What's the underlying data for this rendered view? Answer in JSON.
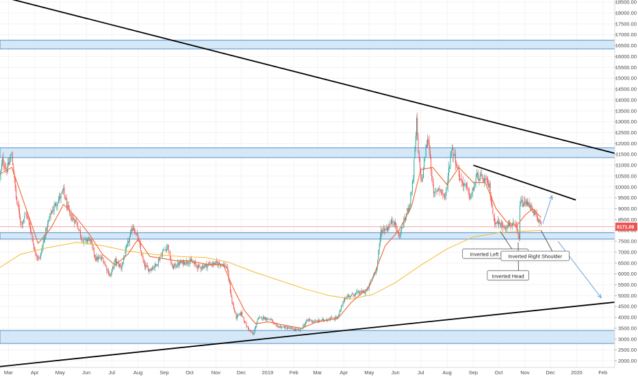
{
  "chart_data": {
    "type": "candlestick",
    "ylim": [
      1700,
      18600
    ],
    "y_ticks": [
      2000,
      2500,
      3000,
      3500,
      4000,
      4500,
      5000,
      5500,
      6000,
      6500,
      7000,
      7500,
      8000,
      8500,
      9000,
      9500,
      10000,
      10500,
      11000,
      11500,
      12000,
      12500,
      13000,
      13500,
      14000,
      14500,
      15000,
      15500,
      16000,
      16500,
      17000,
      17500,
      18000,
      18500
    ],
    "y_tick_labels": [
      "2000.00",
      "2500.00",
      "3000.00",
      "3500.00",
      "4000.00",
      "4500.00",
      "5000.00",
      "5500.00",
      "6000.00",
      "6500.00",
      "7000.00",
      "7500.00",
      "8000.00",
      "8500.00",
      "9000.00",
      "9500.00",
      "10000.00",
      "10500.00",
      "11000.00",
      "11500.00",
      "12000.00",
      "12500.00",
      "13000.00",
      "13500.00",
      "14000.00",
      "14500.00",
      "15000.00",
      "15500.00",
      "16000.00",
      "16500.00",
      "17000.00",
      "17500.00",
      "18000.00",
      "18500.00"
    ],
    "x_start": "2018-02-19",
    "x_end": "2020-02-15",
    "x_ticks": [
      {
        "date": "2018-03-01",
        "label": "Mar"
      },
      {
        "date": "2018-04-01",
        "label": "Apr"
      },
      {
        "date": "2018-05-01",
        "label": "May"
      },
      {
        "date": "2018-06-01",
        "label": "Jun"
      },
      {
        "date": "2018-07-01",
        "label": "Jul"
      },
      {
        "date": "2018-08-01",
        "label": "Aug"
      },
      {
        "date": "2018-09-01",
        "label": "Sep"
      },
      {
        "date": "2018-10-01",
        "label": "Oct"
      },
      {
        "date": "2018-11-01",
        "label": "Nov"
      },
      {
        "date": "2018-12-01",
        "label": "Dec"
      },
      {
        "date": "2019-01-01",
        "label": "2019"
      },
      {
        "date": "2019-02-01",
        "label": "Feb"
      },
      {
        "date": "2019-03-01",
        "label": "Mar"
      },
      {
        "date": "2019-04-01",
        "label": "Apr"
      },
      {
        "date": "2019-05-01",
        "label": "May"
      },
      {
        "date": "2019-06-01",
        "label": "Jun"
      },
      {
        "date": "2019-07-01",
        "label": "Jul"
      },
      {
        "date": "2019-08-01",
        "label": "Aug"
      },
      {
        "date": "2019-09-01",
        "label": "Sep"
      },
      {
        "date": "2019-10-01",
        "label": "Oct"
      },
      {
        "date": "2019-11-01",
        "label": "Nov"
      },
      {
        "date": "2019-12-01",
        "label": "Dec"
      },
      {
        "date": "2020-01-01",
        "label": "2020"
      },
      {
        "date": "2020-02-01",
        "label": "Feb"
      }
    ],
    "price_path": [
      [
        "2018-02-19",
        10500
      ],
      [
        "2018-02-22",
        11200
      ],
      [
        "2018-02-27",
        10800
      ],
      [
        "2018-03-05",
        11500
      ],
      [
        "2018-03-10",
        9500
      ],
      [
        "2018-03-16",
        8300
      ],
      [
        "2018-03-22",
        8800
      ],
      [
        "2018-03-28",
        7900
      ],
      [
        "2018-04-01",
        7000
      ],
      [
        "2018-04-07",
        6700
      ],
      [
        "2018-04-13",
        7800
      ],
      [
        "2018-04-20",
        8800
      ],
      [
        "2018-04-27",
        9300
      ],
      [
        "2018-05-05",
        9800
      ],
      [
        "2018-05-12",
        8700
      ],
      [
        "2018-05-20",
        8400
      ],
      [
        "2018-05-28",
        7500
      ],
      [
        "2018-06-05",
        7600
      ],
      [
        "2018-06-12",
        6700
      ],
      [
        "2018-06-20",
        6700
      ],
      [
        "2018-06-29",
        5900
      ],
      [
        "2018-07-05",
        6600
      ],
      [
        "2018-07-12",
        6300
      ],
      [
        "2018-07-20",
        7400
      ],
      [
        "2018-07-26",
        8200
      ],
      [
        "2018-08-01",
        7600
      ],
      [
        "2018-08-08",
        6400
      ],
      [
        "2018-08-14",
        6200
      ],
      [
        "2018-08-22",
        6400
      ],
      [
        "2018-08-30",
        7000
      ],
      [
        "2018-09-05",
        7300
      ],
      [
        "2018-09-10",
        6300
      ],
      [
        "2018-09-20",
        6500
      ],
      [
        "2018-10-01",
        6600
      ],
      [
        "2018-10-12",
        6300
      ],
      [
        "2018-10-25",
        6450
      ],
      [
        "2018-11-07",
        6500
      ],
      [
        "2018-11-14",
        6300
      ],
      [
        "2018-11-20",
        4700
      ],
      [
        "2018-11-25",
        4000
      ],
      [
        "2018-12-01",
        4200
      ],
      [
        "2018-12-07",
        3600
      ],
      [
        "2018-12-15",
        3200
      ],
      [
        "2018-12-20",
        3900
      ],
      [
        "2018-12-25",
        4000
      ],
      [
        "2019-01-05",
        3900
      ],
      [
        "2019-01-10",
        3600
      ],
      [
        "2019-01-20",
        3550
      ],
      [
        "2019-02-01",
        3450
      ],
      [
        "2019-02-08",
        3400
      ],
      [
        "2019-02-18",
        3900
      ],
      [
        "2019-02-26",
        3800
      ],
      [
        "2019-03-10",
        3900
      ],
      [
        "2019-03-25",
        4000
      ],
      [
        "2019-04-02",
        4900
      ],
      [
        "2019-04-15",
        5100
      ],
      [
        "2019-04-28",
        5200
      ],
      [
        "2019-05-10",
        6300
      ],
      [
        "2019-05-15",
        8000
      ],
      [
        "2019-05-22",
        8100
      ],
      [
        "2019-05-30",
        8500
      ],
      [
        "2019-06-05",
        7700
      ],
      [
        "2019-06-12",
        8500
      ],
      [
        "2019-06-18",
        9300
      ],
      [
        "2019-06-22",
        10500
      ],
      [
        "2019-06-26",
        13000
      ],
      [
        "2019-06-28",
        11500
      ],
      [
        "2019-07-02",
        10200
      ],
      [
        "2019-07-07",
        11800
      ],
      [
        "2019-07-10",
        12200
      ],
      [
        "2019-07-16",
        9600
      ],
      [
        "2019-07-22",
        10000
      ],
      [
        "2019-07-30",
        9500
      ],
      [
        "2019-08-06",
        11800
      ],
      [
        "2019-08-10",
        11400
      ],
      [
        "2019-08-17",
        10300
      ],
      [
        "2019-08-22",
        10100
      ],
      [
        "2019-08-29",
        9500
      ],
      [
        "2019-09-05",
        10500
      ],
      [
        "2019-09-15",
        10300
      ],
      [
        "2019-09-20",
        10000
      ],
      [
        "2019-09-25",
        8500
      ],
      [
        "2019-10-01",
        8300
      ],
      [
        "2019-10-08",
        8200
      ],
      [
        "2019-10-15",
        8300
      ],
      [
        "2019-10-22",
        8100
      ],
      [
        "2019-10-25",
        7500
      ],
      [
        "2019-10-26",
        9300
      ],
      [
        "2019-10-30",
        9200
      ],
      [
        "2019-11-05",
        9300
      ],
      [
        "2019-11-10",
        8800
      ],
      [
        "2019-11-16",
        8600
      ],
      [
        "2019-11-20",
        8171
      ]
    ],
    "ma_fast": [
      [
        "2018-02-19",
        10600
      ],
      [
        "2018-03-05",
        10900
      ],
      [
        "2018-03-20",
        9200
      ],
      [
        "2018-04-05",
        7400
      ],
      [
        "2018-04-20",
        8100
      ],
      [
        "2018-05-05",
        9200
      ],
      [
        "2018-05-20",
        8600
      ],
      [
        "2018-06-05",
        7800
      ],
      [
        "2018-06-20",
        6900
      ],
      [
        "2018-07-05",
        6400
      ],
      [
        "2018-07-20",
        6900
      ],
      [
        "2018-08-01",
        7600
      ],
      [
        "2018-08-15",
        6800
      ],
      [
        "2018-09-01",
        6700
      ],
      [
        "2018-09-15",
        6600
      ],
      [
        "2018-10-01",
        6600
      ],
      [
        "2018-10-20",
        6450
      ],
      [
        "2018-11-10",
        6400
      ],
      [
        "2018-11-22",
        5300
      ],
      [
        "2018-12-05",
        4300
      ],
      [
        "2018-12-18",
        3700
      ],
      [
        "2019-01-01",
        3800
      ],
      [
        "2019-01-20",
        3650
      ],
      [
        "2019-02-10",
        3500
      ],
      [
        "2019-03-01",
        3800
      ],
      [
        "2019-03-25",
        3950
      ],
      [
        "2019-04-10",
        4700
      ],
      [
        "2019-05-01",
        5400
      ],
      [
        "2019-05-20",
        7300
      ],
      [
        "2019-06-05",
        8000
      ],
      [
        "2019-06-20",
        9100
      ],
      [
        "2019-07-01",
        10800
      ],
      [
        "2019-07-15",
        10900
      ],
      [
        "2019-08-01",
        10100
      ],
      [
        "2019-08-15",
        10900
      ],
      [
        "2019-09-01",
        10200
      ],
      [
        "2019-09-15",
        10200
      ],
      [
        "2019-09-28",
        9000
      ],
      [
        "2019-10-10",
        8400
      ],
      [
        "2019-10-22",
        8200
      ],
      [
        "2019-11-01",
        8700
      ],
      [
        "2019-11-10",
        9000
      ],
      [
        "2019-11-20",
        8600
      ]
    ],
    "ma_slow": [
      [
        "2018-02-19",
        6300
      ],
      [
        "2018-03-15",
        6900
      ],
      [
        "2018-04-15",
        7200
      ],
      [
        "2018-05-20",
        7450
      ],
      [
        "2018-06-20",
        7300
      ],
      [
        "2018-07-20",
        7050
      ],
      [
        "2018-08-20",
        6900
      ],
      [
        "2018-09-20",
        6800
      ],
      [
        "2018-10-20",
        6750
      ],
      [
        "2018-11-15",
        6550
      ],
      [
        "2018-12-15",
        6100
      ],
      [
        "2019-01-15",
        5700
      ],
      [
        "2019-02-15",
        5300
      ],
      [
        "2019-03-15",
        5000
      ],
      [
        "2019-04-10",
        4850
      ],
      [
        "2019-05-05",
        5050
      ],
      [
        "2019-06-01",
        5600
      ],
      [
        "2019-07-01",
        6400
      ],
      [
        "2019-08-01",
        7150
      ],
      [
        "2019-09-01",
        7700
      ],
      [
        "2019-10-01",
        7900
      ],
      [
        "2019-10-25",
        7950
      ],
      [
        "2019-11-20",
        8000
      ]
    ],
    "zones": [
      {
        "y0": 16350,
        "y1": 16750
      },
      {
        "y0": 11350,
        "y1": 11800
      },
      {
        "y0": 7600,
        "y1": 7900
      },
      {
        "y0": 2800,
        "y1": 3400
      }
    ],
    "trendlines": [
      {
        "x1": "2018-02-26",
        "y1": 18700,
        "x2": "2020-02-15",
        "y2": 11550,
        "color": "#000000"
      },
      {
        "x1": "2018-02-14",
        "y1": 1720,
        "x2": "2020-02-15",
        "y2": 4700,
        "color": "#000000"
      },
      {
        "x1": "2019-09-01",
        "y1": 11000,
        "x2": "2019-12-31",
        "y2": 9400,
        "color": "#000000"
      }
    ],
    "arrows": [
      {
        "x1": "2019-11-22",
        "y1": 8300,
        "x2": "2019-12-03",
        "y2": 9600
      },
      {
        "x1": "2019-12-10",
        "y1": 7500,
        "x2": "2020-01-30",
        "y2": 4900
      }
    ],
    "annotations": [
      {
        "text": "Inverted Left Shoulder",
        "x": "2019-09-27",
        "y": 6900,
        "px": "2019-10-03",
        "py": 7950
      },
      {
        "text": "Inverted Head",
        "x": "2019-10-12",
        "y": 5900,
        "px": "2019-10-24",
        "py": 7450
      },
      {
        "text": "Inverted Right Shoulder",
        "x": "2019-11-13",
        "y": 6800,
        "px": "2019-11-20",
        "py": 8000
      }
    ],
    "last_price": 8171.09,
    "last_price_label": "8171.09",
    "colors": {
      "up": "#26a69a",
      "down": "#ef5350",
      "ma_fast": "#f0642d",
      "ma_slow": "#f7b731",
      "zone_fill": "#cde4f7",
      "zone_border": "#5a8fc7",
      "arrow": "#6f9fd8",
      "badge": "#ef5350",
      "price_line": "#f2a7a5"
    }
  }
}
